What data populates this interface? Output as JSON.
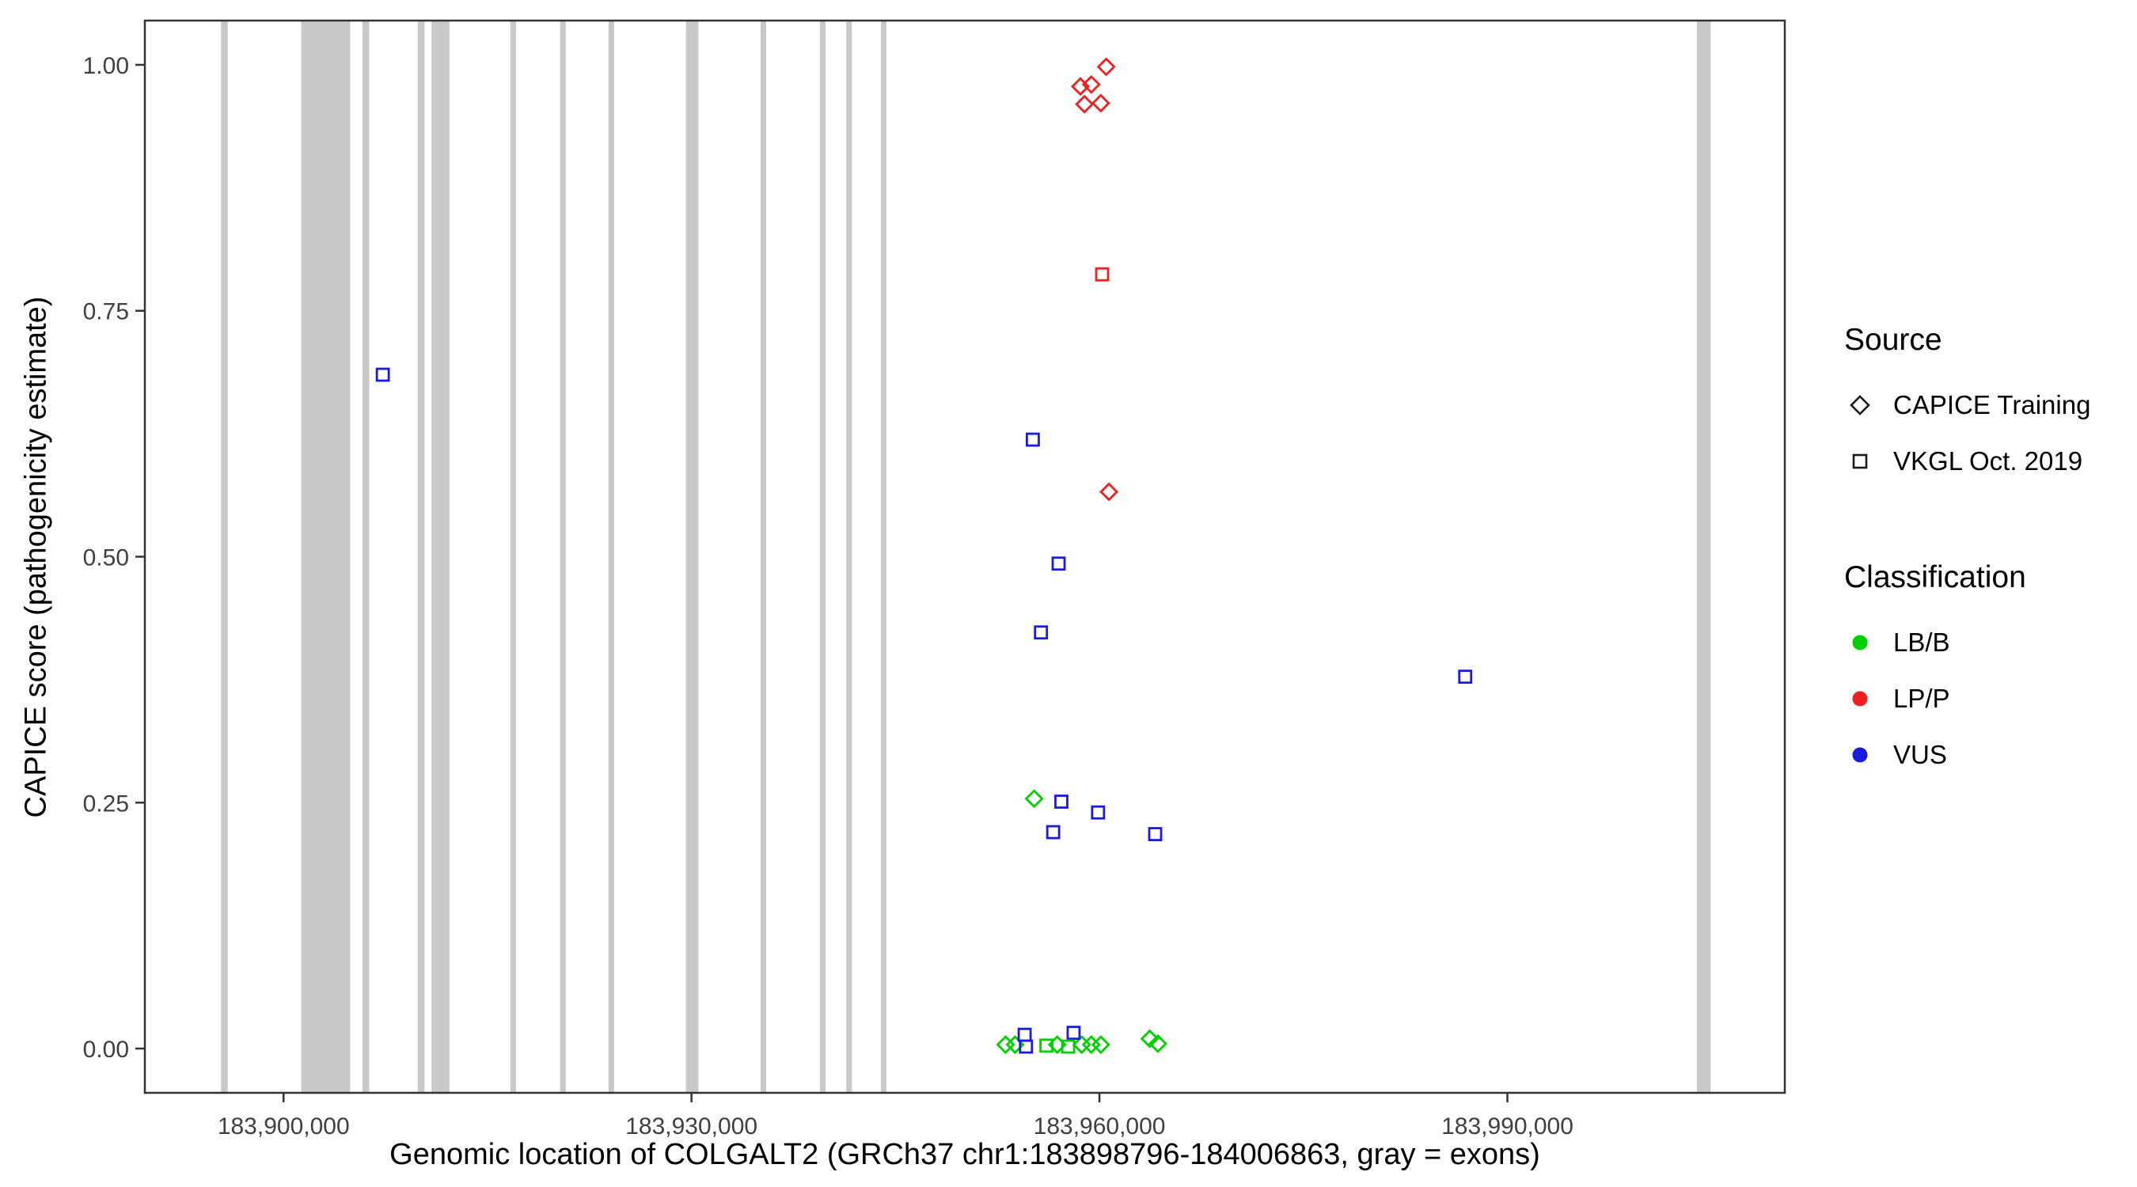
{
  "legend": {
    "source": {
      "title": "Source",
      "items": [
        {
          "label": "CAPICE Training",
          "shape": "diamond"
        },
        {
          "label": "VKGL Oct. 2019",
          "shape": "square"
        }
      ]
    },
    "classification": {
      "title": "Classification",
      "items": [
        {
          "label": "LB/B",
          "color": "#00d000"
        },
        {
          "label": "LP/P",
          "color": "#ee1f1f"
        },
        {
          "label": "VUS",
          "color": "#1a1ae0"
        }
      ]
    }
  },
  "chart_data": {
    "type": "scatter",
    "title": "",
    "xlabel": "Genomic location of COLGALT2 (GRCh37 chr1:183898796-184006863, gray = exons)",
    "ylabel": "CAPICE score (pathogenicity estimate)",
    "xlim": [
      183889800,
      184010400
    ],
    "ylim": [
      -0.045,
      1.045
    ],
    "grid": false,
    "legend_position": "right",
    "x_ticks": [
      {
        "value": 183900000,
        "label": "183,900,000"
      },
      {
        "value": 183930000,
        "label": "183,930,000"
      },
      {
        "value": 183960000,
        "label": "183,960,000"
      },
      {
        "value": 183990000,
        "label": "183,990,000"
      }
    ],
    "y_ticks": [
      {
        "value": 0.0,
        "label": "0.00"
      },
      {
        "value": 0.25,
        "label": "0.25"
      },
      {
        "value": 0.5,
        "label": "0.50"
      },
      {
        "value": 0.75,
        "label": "0.75"
      },
      {
        "value": 1.0,
        "label": "1.00"
      }
    ],
    "exon_color": "#c9c9c9",
    "exons": [
      [
        183895400,
        183895900
      ],
      [
        183901300,
        183904900
      ],
      [
        183905800,
        183906300
      ],
      [
        183909860,
        183910370
      ],
      [
        183910880,
        183912200
      ],
      [
        183916680,
        183917090
      ],
      [
        183920340,
        183920750
      ],
      [
        183923900,
        183924310
      ],
      [
        183929590,
        183930510
      ],
      [
        183935080,
        183935490
      ],
      [
        183939450,
        183939860
      ],
      [
        183941380,
        183941790
      ],
      [
        183943930,
        183944340
      ],
      [
        184003930,
        184004950
      ]
    ],
    "class_colors": {
      "LB/B": "#00d000",
      "LP/P": "#ee1f1f",
      "VUS": "#1a1ae0"
    },
    "series": [
      {
        "name": "CAPICE Training",
        "shape": "diamond",
        "points": [
          {
            "x": 183958600,
            "y": 0.978,
            "class": "LP/P"
          },
          {
            "x": 183959400,
            "y": 0.98,
            "class": "LP/P"
          },
          {
            "x": 183960500,
            "y": 0.998,
            "class": "LP/P"
          },
          {
            "x": 183958900,
            "y": 0.96,
            "class": "LP/P"
          },
          {
            "x": 183960100,
            "y": 0.961,
            "class": "LP/P"
          },
          {
            "x": 183960700,
            "y": 0.566,
            "class": "LP/P"
          },
          {
            "x": 183955200,
            "y": 0.254,
            "class": "LB/B"
          },
          {
            "x": 183953100,
            "y": 0.004,
            "class": "LB/B"
          },
          {
            "x": 183953800,
            "y": 0.004,
            "class": "LB/B"
          },
          {
            "x": 183956900,
            "y": 0.004,
            "class": "LB/B"
          },
          {
            "x": 183958700,
            "y": 0.004,
            "class": "LB/B"
          },
          {
            "x": 183959400,
            "y": 0.004,
            "class": "LB/B"
          },
          {
            "x": 183960100,
            "y": 0.004,
            "class": "LB/B"
          },
          {
            "x": 183963700,
            "y": 0.01,
            "class": "LB/B"
          },
          {
            "x": 183964300,
            "y": 0.005,
            "class": "LB/B"
          }
        ]
      },
      {
        "name": "VKGL Oct. 2019",
        "shape": "square",
        "points": [
          {
            "x": 183960200,
            "y": 0.787,
            "class": "LP/P"
          },
          {
            "x": 183907300,
            "y": 0.685,
            "class": "VUS"
          },
          {
            "x": 183955100,
            "y": 0.619,
            "class": "VUS"
          },
          {
            "x": 183957000,
            "y": 0.493,
            "class": "VUS"
          },
          {
            "x": 183955700,
            "y": 0.423,
            "class": "VUS"
          },
          {
            "x": 183986900,
            "y": 0.378,
            "class": "VUS"
          },
          {
            "x": 183957200,
            "y": 0.251,
            "class": "VUS"
          },
          {
            "x": 183959900,
            "y": 0.24,
            "class": "VUS"
          },
          {
            "x": 183956600,
            "y": 0.22,
            "class": "VUS"
          },
          {
            "x": 183964100,
            "y": 0.218,
            "class": "VUS"
          },
          {
            "x": 183954500,
            "y": 0.014,
            "class": "VUS"
          },
          {
            "x": 183958100,
            "y": 0.016,
            "class": "VUS"
          },
          {
            "x": 183954600,
            "y": 0.002,
            "class": "VUS"
          },
          {
            "x": 183956100,
            "y": 0.003,
            "class": "LB/B"
          },
          {
            "x": 183957700,
            "y": 0.002,
            "class": "LB/B"
          }
        ]
      }
    ]
  }
}
